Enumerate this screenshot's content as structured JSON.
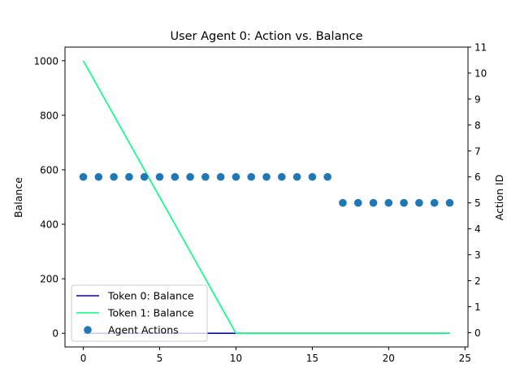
{
  "chart_data": {
    "type": "line",
    "title": "User Agent 0: Action vs. Balance",
    "xlabel": "",
    "ylabel": "Balance",
    "y2label": "Action ID",
    "xlim": [
      -1.2,
      25.2
    ],
    "ylim": [
      -50,
      1050
    ],
    "y2lim": [
      -0.55,
      11.0
    ],
    "xticks": [
      0,
      5,
      10,
      15,
      20,
      25
    ],
    "yticks": [
      0,
      200,
      400,
      600,
      800,
      1000
    ],
    "y2ticks": [
      0,
      1,
      2,
      3,
      4,
      5,
      6,
      7,
      8,
      9,
      10,
      11
    ],
    "grid": false,
    "legend_position": "bottom-left",
    "series": [
      {
        "name": "Token 0: Balance",
        "axis": "left",
        "kind": "line",
        "color": "#0000cc",
        "x": [
          0,
          10,
          24
        ],
        "y": [
          0,
          0,
          0
        ]
      },
      {
        "name": "Token 1: Balance",
        "axis": "left",
        "kind": "line",
        "color": "#00ff7f",
        "x": [
          0,
          10,
          24
        ],
        "y": [
          1000,
          0,
          0
        ]
      },
      {
        "name": "Agent Actions",
        "axis": "right",
        "kind": "scatter",
        "color": "#1f77b4",
        "x": [
          0,
          1,
          2,
          3,
          4,
          5,
          6,
          7,
          8,
          9,
          10,
          11,
          12,
          13,
          14,
          15,
          16,
          17,
          18,
          19,
          20,
          21,
          22,
          23,
          24
        ],
        "y": [
          6,
          6,
          6,
          6,
          6,
          6,
          6,
          6,
          6,
          6,
          6,
          6,
          6,
          6,
          6,
          6,
          6,
          5,
          5,
          5,
          5,
          5,
          5,
          5,
          5
        ]
      }
    ]
  }
}
